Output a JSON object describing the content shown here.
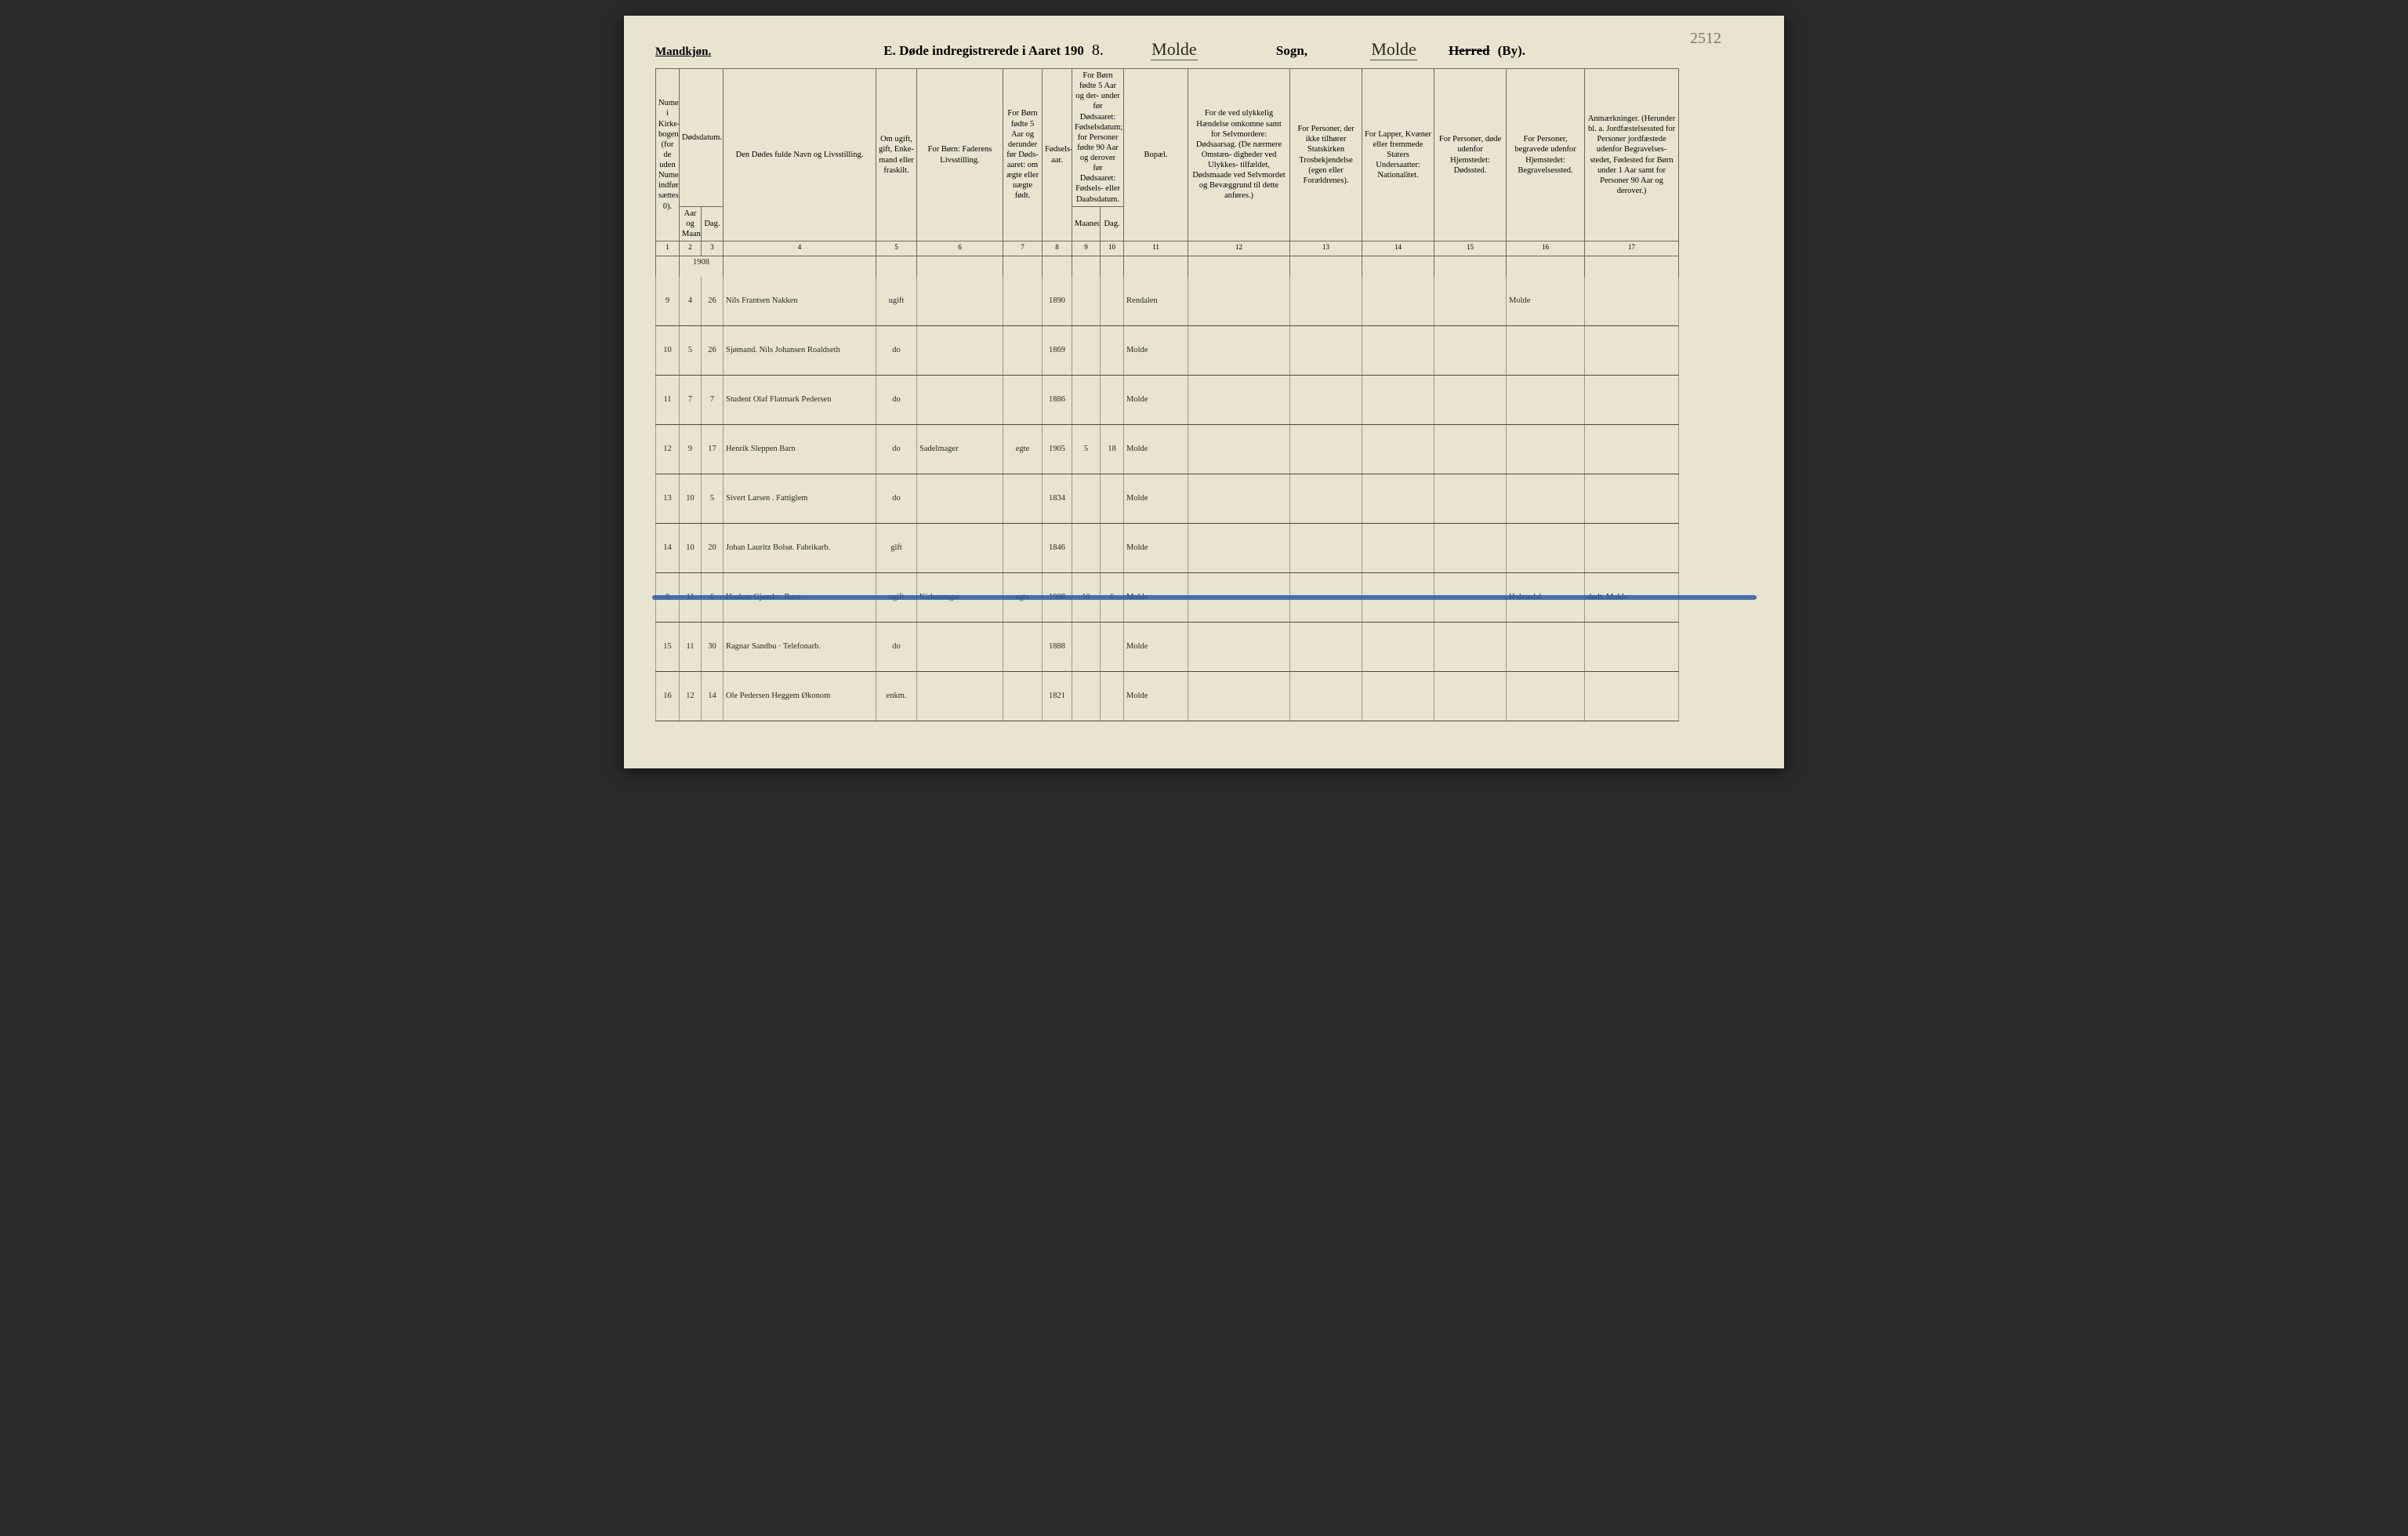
{
  "corner_note": "2512",
  "header": {
    "gender": "Mandkjøn.",
    "title_prefix": "E.  Døde indregistrerede i Aaret 190",
    "year_suffix": "8.",
    "sogn_name_hand": "Molde",
    "sogn_label": "Sogn,",
    "herred_name_hand": "Molde",
    "herred_struck": "Herred",
    "by_label": "(By)."
  },
  "columns": {
    "c1": "Numer i Kirke- bogen (for de uden Numer indførte sættes. 0).",
    "c2_group": "Dødsdatum.",
    "c2": "Aar og Maaned.",
    "c3": "Dag.",
    "c4": "Den Dødes fulde Navn og Livsstilling.",
    "c5": "Om ugift, gift, Enke- mand eller fraskilt.",
    "c6": "For Børn: Faderens Livsstilling.",
    "c7": "For Børn fødte 5 Aar og derunder før Døds- aaret: om ægte eller uægte født.",
    "c8": "Fødsels- aar.",
    "c9_group": "For Børn fødte 5 Aar og der- under før Dødsaaret: Fødselsdatum; for Personer fødte 90 Aar og derover før Dødsaaret: Fødsels- eller Daabsdatum.",
    "c9": "Maaned.",
    "c10": "Dag.",
    "c11": "Bopæl.",
    "c12": "For de ved ulykkelig Hændelse omkomne samt for Selvmordere: Dødsaarsag. (De nærmere Omstæn- digheder ved Ulykkes- tilfældet, Dødsmaade ved Selvmordet og Bevæggrund til dette anføres.)",
    "c13": "For Personer, der ikke tilhører Statskirken Trosbekjendelse (egen eller Forældrenes).",
    "c14": "For Lapper, Kvæner eller fremmede Staters Undersaatter: Nationalitet.",
    "c15": "For Personer, døde udenfor Hjemstedet: Dødssted.",
    "c16": "For Personer, begravede udenfor Hjemstedet: Begravelsessted.",
    "c17": "Anmærkninger. (Herunder bl. a. Jordfæstelsessted for Personer jordfæstede udenfor Begravelses- stedet, Fødested for Børn under 1 Aar samt for Personer 90 Aar og derover.)"
  },
  "colnums": [
    "1",
    "2",
    "3",
    "4",
    "5",
    "6",
    "7",
    "8",
    "9",
    "10",
    "11",
    "12",
    "13",
    "14",
    "15",
    "16",
    "17"
  ],
  "year_header": "1908",
  "rows": [
    {
      "num": "9",
      "mon": "4",
      "day": "26",
      "name": "Nils Frantsen Nakken",
      "status": "ugift",
      "father": "",
      "legit": "",
      "byear": "1890",
      "bmon": "",
      "bday": "",
      "res": "Rendalen",
      "c12": "",
      "c13": "",
      "c14": "",
      "c15": "",
      "c16": "Molde",
      "c17": ""
    },
    {
      "num": "10",
      "mon": "5",
      "day": "26",
      "name": "Sjømand.  Nils Johansen Roaldseth",
      "status": "do",
      "father": "",
      "legit": "",
      "byear": "1869",
      "bmon": "",
      "bday": "",
      "res": "Molde",
      "c12": "",
      "c13": "",
      "c14": "",
      "c15": "",
      "c16": "",
      "c17": ""
    },
    {
      "num": "11",
      "mon": "7",
      "day": "7",
      "name": "Student  Olaf Flatmark Pedersen",
      "status": "do",
      "father": "",
      "legit": "",
      "byear": "1886",
      "bmon": "",
      "bday": "",
      "res": "Molde",
      "c12": "",
      "c13": "",
      "c14": "",
      "c15": "",
      "c16": "",
      "c17": ""
    },
    {
      "num": "12",
      "mon": "9",
      "day": "17",
      "name": "Henrik Sleppen  Barn",
      "status": "do",
      "father": "Sadelmager",
      "legit": "egte",
      "byear": "1905",
      "bmon": "5",
      "bday": "18",
      "res": "Molde",
      "c12": "",
      "c13": "",
      "c14": "",
      "c15": "",
      "c16": "",
      "c17": ""
    },
    {
      "num": "13",
      "mon": "10",
      "day": "5",
      "name": "Sivert Larsen . Fattiglem",
      "status": "do",
      "father": "",
      "legit": "",
      "byear": "1834",
      "bmon": "",
      "bday": "",
      "res": "Molde",
      "c12": "",
      "c13": "",
      "c14": "",
      "c15": "",
      "c16": "",
      "c17": ""
    },
    {
      "num": "14",
      "mon": "10",
      "day": "20",
      "name": "Johan Lauritz Bolsø. Fabrikarb.",
      "status": "gift",
      "father": "",
      "legit": "",
      "byear": "1846",
      "bmon": "",
      "bday": "",
      "res": "Molde",
      "c12": "",
      "c13": "",
      "c14": "",
      "c15": "",
      "c16": "",
      "c17": ""
    },
    {
      "struck": true,
      "num": "0",
      "mon": "11",
      "day": "6",
      "name": "Haakon Gjøndo . Barn",
      "status": "ugift",
      "father": "Kirkesanger",
      "legit": "egte",
      "byear": "1908",
      "bmon": "10",
      "bday": "6",
      "res": "Molde",
      "c12": "",
      "c13": "",
      "c14": "",
      "c15": "",
      "c16": "Holmedal",
      "c17": "dødt. Molde"
    },
    {
      "num": "15",
      "mon": "11",
      "day": "30",
      "name": "Ragnar Sandbu · Telefonarb.",
      "status": "do",
      "father": "",
      "legit": "",
      "byear": "1888",
      "bmon": "",
      "bday": "",
      "res": "Molde",
      "c12": "",
      "c13": "",
      "c14": "",
      "c15": "",
      "c16": "",
      "c17": ""
    },
    {
      "num": "16",
      "mon": "12",
      "day": "14",
      "name": "Ole Pedersen Heggem  Økonom",
      "status": "enkm.",
      "father": "",
      "legit": "",
      "byear": "1821",
      "bmon": "",
      "bday": "",
      "res": "Molde",
      "c12": "",
      "c13": "",
      "c14": "",
      "c15": "",
      "c16": "",
      "c17": ""
    }
  ],
  "colors": {
    "paper": "#e8e4d0",
    "rule": "#6b6b5a",
    "ink": "#2a2a22",
    "blue_strike": "#2a5aa8"
  }
}
